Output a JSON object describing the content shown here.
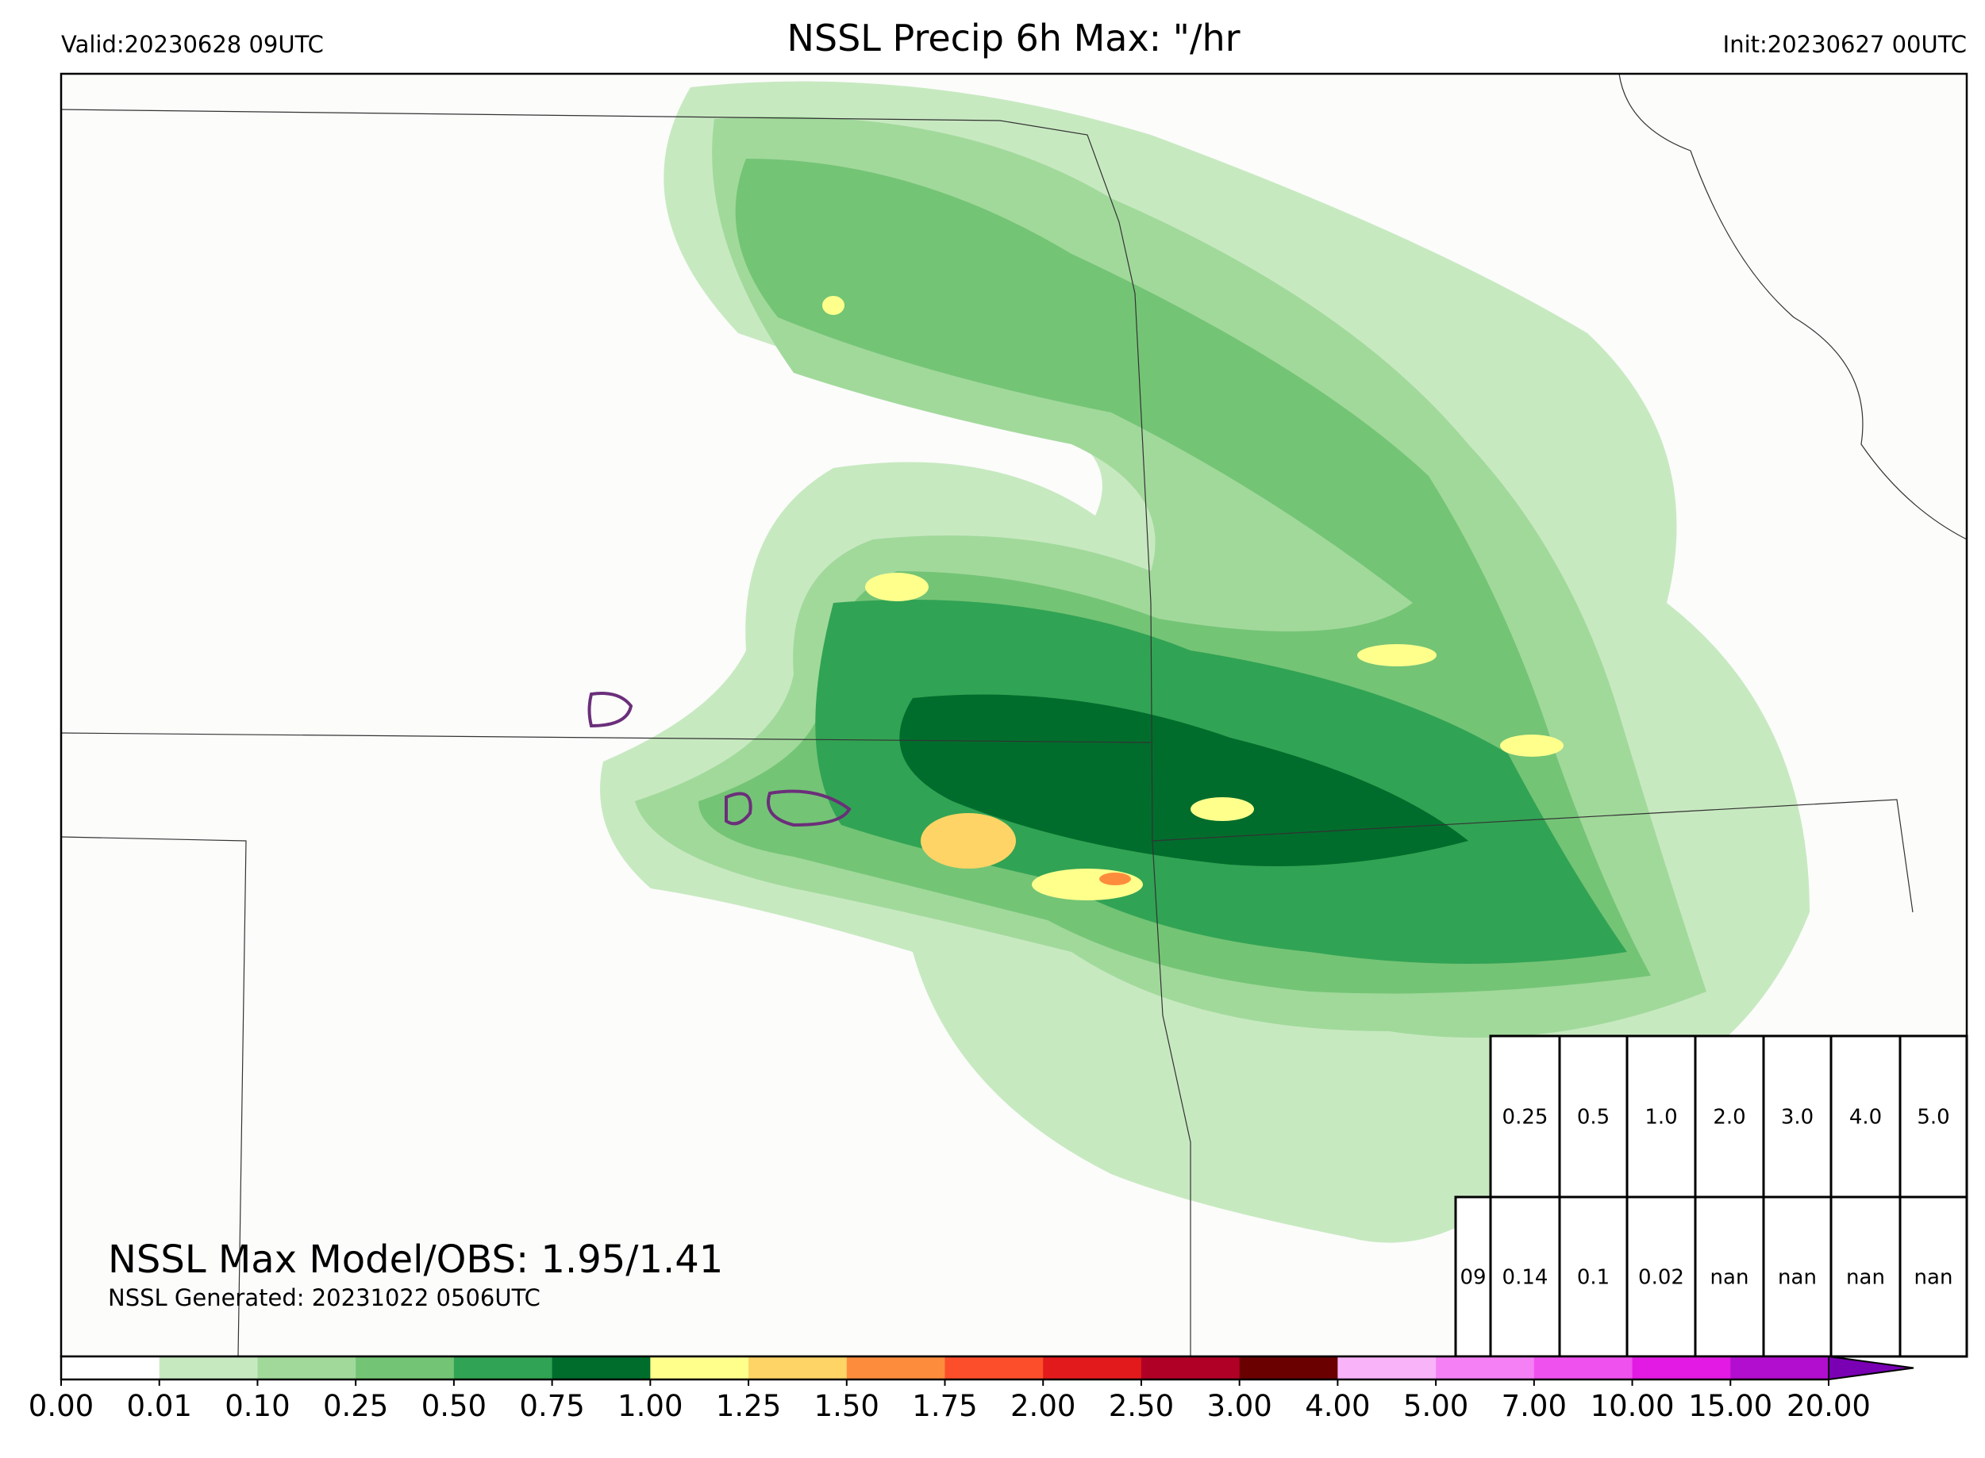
{
  "header": {
    "valid": "Valid:20230628 09UTC",
    "title": "NSSL Precip 6h Max: \"/hr",
    "init": "Init:20230627 00UTC"
  },
  "footer": {
    "max": "NSSL Max Model/OBS: 1.95/1.41",
    "generated": "NSSL Generated: 20231022 0506UTC"
  },
  "table": {
    "rows": [
      [
        "0.25",
        "0.5",
        "1.0",
        "2.0",
        "3.0",
        "4.0",
        "5.0"
      ],
      [
        "09",
        "0.14",
        "0.1",
        "0.02",
        "nan",
        "nan",
        "nan",
        "nan"
      ]
    ]
  },
  "colorbar": {
    "labels": [
      "0.00",
      "0.01",
      "0.10",
      "0.25",
      "0.50",
      "0.75",
      "1.00",
      "1.25",
      "1.50",
      "1.75",
      "2.00",
      "2.50",
      "3.00",
      "4.00",
      "5.00",
      "7.00",
      "10.00",
      "15.00",
      "20.00"
    ],
    "colors": [
      "#ffffff",
      "#c7e9c0",
      "#a1d99b",
      "#74c476",
      "#31a354",
      "#006d2c",
      "#ffff8c",
      "#fed466",
      "#fd8d3c",
      "#fc4e2a",
      "#e31a1c",
      "#b10026",
      "#6b0000",
      "#f9b4f9",
      "#f580f5",
      "#ef51ef",
      "#e31ae3",
      "#b20ecf"
    ],
    "extend_color": "#7a00b3"
  }
}
